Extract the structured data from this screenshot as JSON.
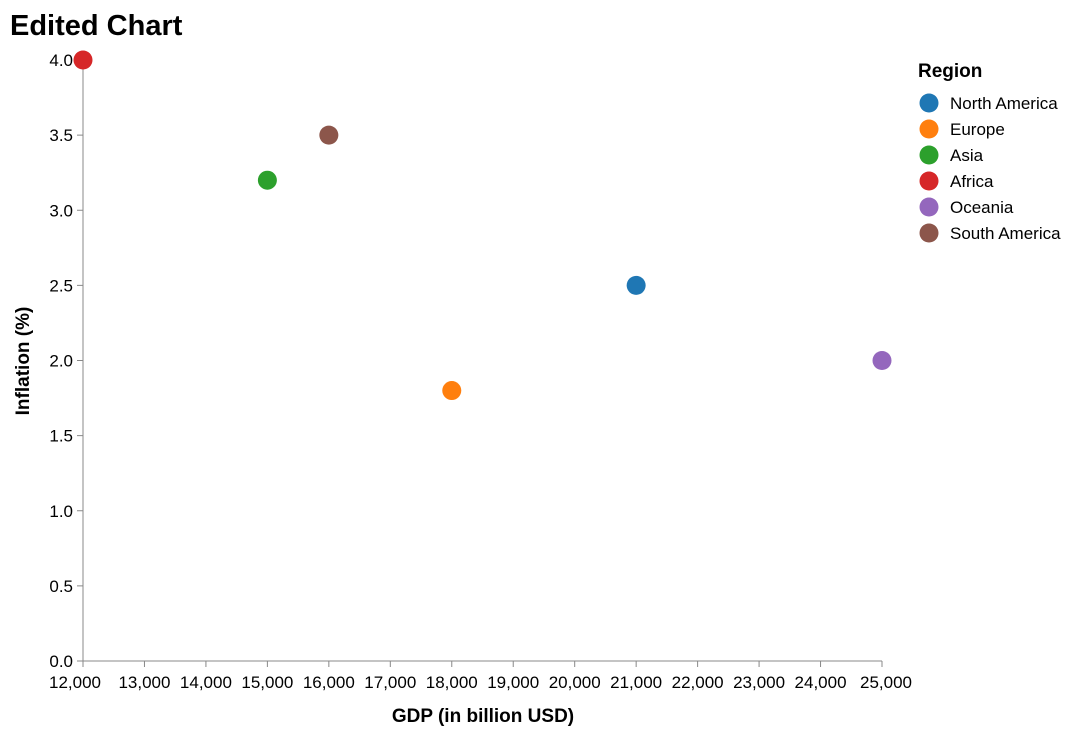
{
  "chart_data": {
    "type": "scatter",
    "title": "Edited Chart",
    "xlabel": "GDP (in billion USD)",
    "ylabel": "Inflation (%)",
    "xlim": [
      12000,
      25000
    ],
    "ylim": [
      0,
      4
    ],
    "x_ticks": [
      12000,
      13000,
      14000,
      15000,
      16000,
      17000,
      18000,
      19000,
      20000,
      21000,
      22000,
      23000,
      24000,
      25000
    ],
    "x_tick_labels": [
      "12,000",
      "13,000",
      "14,000",
      "15,000",
      "16,000",
      "17,000",
      "18,000",
      "19,000",
      "20,000",
      "21,000",
      "22,000",
      "23,000",
      "24,000",
      "25,000"
    ],
    "y_ticks": [
      0,
      0.5,
      1,
      1.5,
      2,
      2.5,
      3,
      3.5,
      4
    ],
    "y_tick_labels": [
      "0.0",
      "0.5",
      "1.0",
      "1.5",
      "2.0",
      "2.5",
      "3.0",
      "3.5",
      "4.0"
    ],
    "grid": false,
    "legend": {
      "title": "Region",
      "placement": "right"
    },
    "series": [
      {
        "name": "North America",
        "color": "#1f77b4",
        "x": 21000,
        "y": 2.5
      },
      {
        "name": "Europe",
        "color": "#ff7f0e",
        "x": 18000,
        "y": 1.8
      },
      {
        "name": "Asia",
        "color": "#2ca02c",
        "x": 15000,
        "y": 3.2
      },
      {
        "name": "Africa",
        "color": "#d62728",
        "x": 12000,
        "y": 4.0
      },
      {
        "name": "Oceania",
        "color": "#9467bd",
        "x": 25000,
        "y": 2.0
      },
      {
        "name": "South America",
        "color": "#8c564b",
        "x": 16000,
        "y": 3.5
      }
    ]
  }
}
